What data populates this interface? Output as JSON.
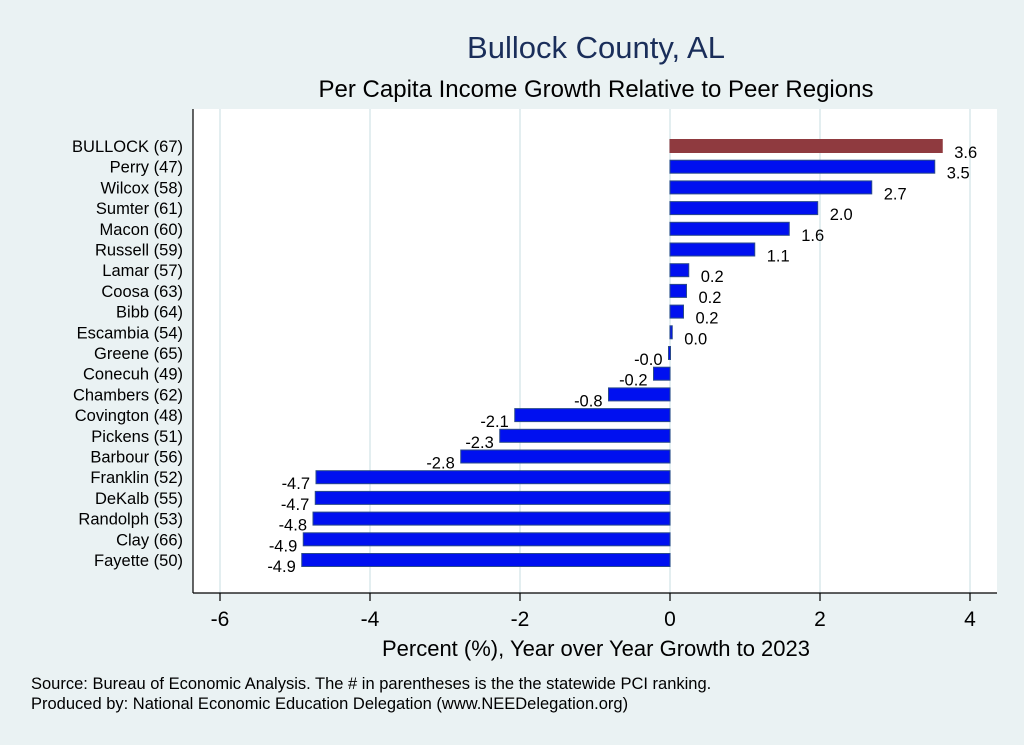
{
  "chart_data": {
    "type": "bar",
    "orientation": "horizontal",
    "title": "Bullock County, AL",
    "subtitle": "Per Capita Income Growth Relative to Peer Regions",
    "xlabel": "Percent (%), Year over Year Growth to 2023",
    "ylabel": "",
    "xlim": [
      -6.35,
      4.35
    ],
    "xticks": [
      -6,
      -4,
      -2,
      0,
      2,
      4
    ],
    "xtick_labels": [
      "-6",
      "-4",
      "-2",
      "0",
      "2",
      "4"
    ],
    "grid": true,
    "categories": [
      "BULLOCK (67)",
      "Perry (47)",
      "Wilcox (58)",
      "Sumter (61)",
      "Macon (60)",
      "Russell (59)",
      "Lamar (57)",
      "Coosa (63)",
      "Bibb (64)",
      "Escambia (54)",
      "Greene (65)",
      "Conecuh (49)",
      "Chambers (62)",
      "Covington (48)",
      "Pickens (51)",
      "Barbour (56)",
      "Franklin (52)",
      "DeKalb (55)",
      "Randolph (53)",
      "Clay (66)",
      "Fayette (50)"
    ],
    "values": [
      3.63,
      3.53,
      2.69,
      1.97,
      1.59,
      1.13,
      0.25,
      0.22,
      0.18,
      0.03,
      -0.02,
      -0.22,
      -0.82,
      -2.07,
      -2.27,
      -2.79,
      -4.72,
      -4.73,
      -4.76,
      -4.89,
      -4.91
    ],
    "value_labels": [
      "3.6",
      "3.5",
      "2.7",
      "2.0",
      "1.6",
      "1.1",
      "0.2",
      "0.2",
      "0.2",
      "0.0",
      "-0.0",
      "-0.2",
      "-0.8",
      "-2.1",
      "-2.3",
      "-2.8",
      "-4.7",
      "-4.7",
      "-4.8",
      "-4.9",
      "-4.9"
    ],
    "highlight_index": 0,
    "colors": {
      "highlight": "#8f3a3f",
      "bar": "#0010f0",
      "bar_edge": "#2a4a8a",
      "grid": "#e3eef0",
      "background": "#eaf2f3",
      "plot_background": "#ffffff",
      "title": "#1a2e5a"
    },
    "notes": [
      "Source: Bureau of Economic Analysis. The # in parentheses is the the statewide PCI ranking.",
      "Produced by: National Economic Education Delegation (www.NEEDelegation.org)"
    ]
  }
}
